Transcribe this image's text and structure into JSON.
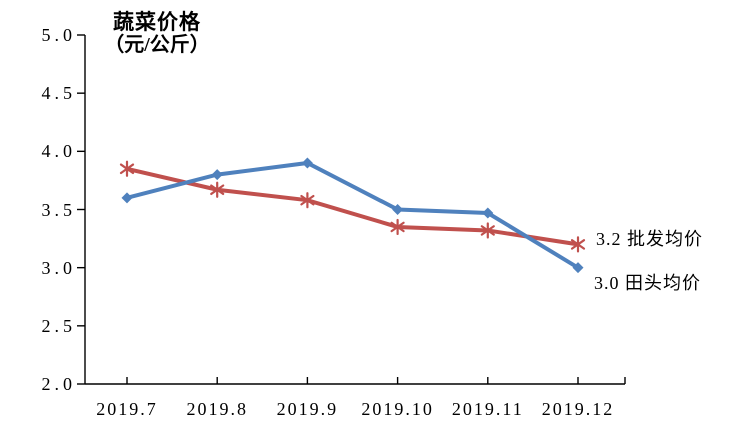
{
  "chart_data": {
    "type": "line",
    "title": "蔬菜价格",
    "unit_label": "（元/公斤）",
    "categories": [
      "2019.7",
      "2019.8",
      "2019.9",
      "2019.10",
      "2019.11",
      "2019.12"
    ],
    "series": [
      {
        "name": "批发均价",
        "color": "#C0504D",
        "marker": "asterisk",
        "values": [
          3.85,
          3.67,
          3.58,
          3.35,
          3.32,
          3.2
        ],
        "end_label": "3.2 批发均价"
      },
      {
        "name": "田头均价",
        "color": "#4F81BD",
        "marker": "diamond",
        "values": [
          3.6,
          3.8,
          3.9,
          3.5,
          3.47,
          3.0
        ],
        "end_label": "3.0 田头均价"
      }
    ],
    "ylim": [
      2.0,
      5.0
    ],
    "ytick_step": 0.5,
    "ytick_labels": [
      "2.0",
      "2.5",
      "3.0",
      "3.5",
      "4.0",
      "4.5",
      "5.0"
    ],
    "axis_color": "#000000",
    "grid": false,
    "legend_position": "end-of-line"
  }
}
